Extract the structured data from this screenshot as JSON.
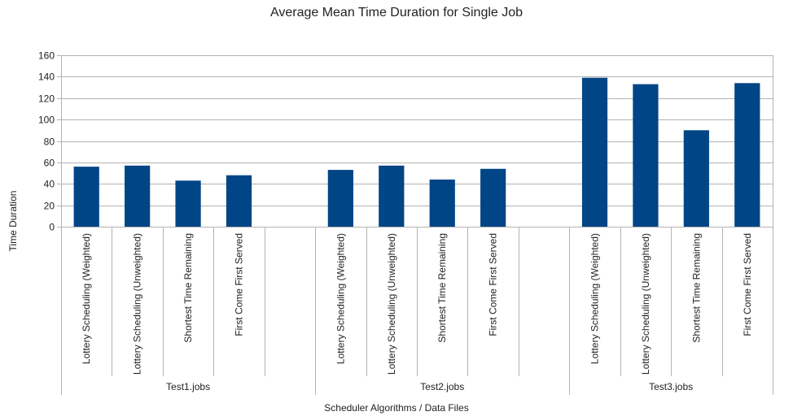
{
  "chart_data": {
    "type": "bar",
    "title": "Average Mean Time Duration for Single Job",
    "xlabel": "Scheduler Algorithms / Data Files",
    "ylabel": "Time Duration",
    "ylim": [
      0,
      160
    ],
    "yticks": [
      0,
      20,
      40,
      60,
      80,
      100,
      120,
      140,
      160
    ],
    "grid": true,
    "bar_color": "#004586",
    "groups": [
      {
        "name": "Test1.jobs",
        "categories": [
          "Lottery Scheduling (Weighted)",
          "Lottery Scheduling (Unweighted)",
          "Shortest Time Remaining",
          "First Come First Served"
        ],
        "values": [
          56,
          57,
          43,
          48
        ]
      },
      {
        "name": "Test2.jobs",
        "categories": [
          "Lottery Scheduling (Weighted)",
          "Lottery Scheduling (Unweighted)",
          "Shortest Time Remaining",
          "First Come First Served"
        ],
        "values": [
          53,
          57,
          44,
          54
        ]
      },
      {
        "name": "Test3.jobs",
        "categories": [
          "Lottery Scheduling (Weighted)",
          "Lottery Scheduling (Unweighted)",
          "Shortest Time Remaining",
          "First Come First Served"
        ],
        "values": [
          139,
          133,
          90,
          134
        ]
      }
    ]
  }
}
